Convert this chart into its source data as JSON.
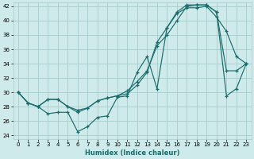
{
  "xlabel": "Humidex (Indice chaleur)",
  "xlim": [
    -0.5,
    23.5
  ],
  "ylim": [
    23.5,
    42.5
  ],
  "yticks": [
    24,
    26,
    28,
    30,
    32,
    34,
    36,
    38,
    40,
    42
  ],
  "xticks": [
    0,
    1,
    2,
    3,
    4,
    5,
    6,
    7,
    8,
    9,
    10,
    11,
    12,
    13,
    14,
    15,
    16,
    17,
    18,
    19,
    20,
    21,
    22,
    23
  ],
  "bg_color": "#ceeaea",
  "grid_color": "#aacccc",
  "line_color": "#1a6b6b",
  "line1_y": [
    30,
    28.5,
    28,
    27,
    27.2,
    27.2,
    24.5,
    25.2,
    26.5,
    26.7,
    29.3,
    29.5,
    32.8,
    35.0,
    30.5,
    39.0,
    41.0,
    41.8,
    41.8,
    42.0,
    40.5,
    38.5,
    35.0,
    34.0
  ],
  "line2_y": [
    30,
    28.5,
    28,
    29.0,
    29.0,
    28.0,
    27.2,
    27.8,
    28.8,
    29.2,
    29.5,
    29.8,
    31.0,
    32.8,
    37.0,
    39.0,
    41.2,
    42.2,
    42.2,
    42.2,
    41.2,
    29.5,
    30.5,
    34.0
  ],
  "line3_y": [
    30,
    28.5,
    28,
    29.0,
    29.0,
    28.0,
    27.5,
    27.8,
    28.8,
    29.2,
    29.5,
    30.2,
    31.5,
    33.0,
    36.5,
    38.0,
    40.0,
    42.0,
    42.2,
    42.2,
    41.2,
    33.0,
    33.0,
    34.0
  ]
}
